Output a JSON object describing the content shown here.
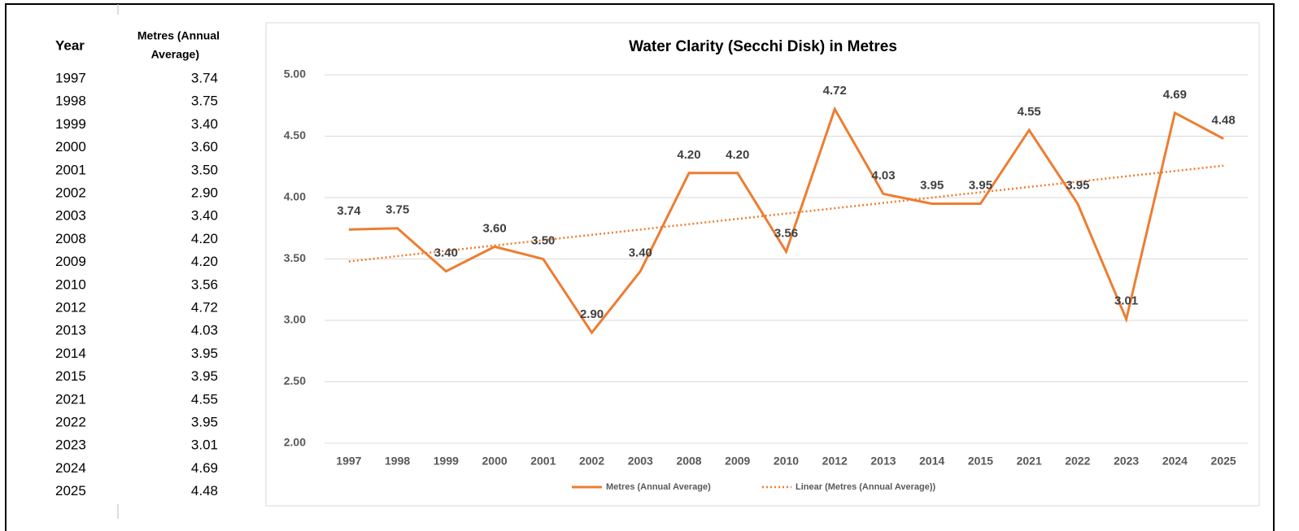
{
  "table": {
    "headers": [
      "Year",
      "Metres (Annual",
      "Average)"
    ],
    "rows": [
      [
        "1997",
        "3.74"
      ],
      [
        "1998",
        "3.75"
      ],
      [
        "1999",
        "3.40"
      ],
      [
        "2000",
        "3.60"
      ],
      [
        "2001",
        "3.50"
      ],
      [
        "2002",
        "2.90"
      ],
      [
        "2003",
        "3.40"
      ],
      [
        "2008",
        "4.20"
      ],
      [
        "2009",
        "4.20"
      ],
      [
        "2010",
        "3.56"
      ],
      [
        "2012",
        "4.72"
      ],
      [
        "2013",
        "4.03"
      ],
      [
        "2014",
        "3.95"
      ],
      [
        "2015",
        "3.95"
      ],
      [
        "2021",
        "4.55"
      ],
      [
        "2022",
        "3.95"
      ],
      [
        "2023",
        "3.01"
      ],
      [
        "2024",
        "4.69"
      ],
      [
        "2025",
        "4.48"
      ]
    ]
  },
  "chart_data": {
    "type": "line",
    "title": "Water Clarity (Secchi Disk) in Metres",
    "categories": [
      "1997",
      "1998",
      "1999",
      "2000",
      "2001",
      "2002",
      "2003",
      "2008",
      "2009",
      "2010",
      "2012",
      "2013",
      "2014",
      "2015",
      "2021",
      "2022",
      "2023",
      "2024",
      "2025"
    ],
    "series": [
      {
        "name": "Metres (Annual Average)",
        "color": "#ED7D31",
        "values": [
          3.74,
          3.75,
          3.4,
          3.6,
          3.5,
          2.9,
          3.4,
          4.2,
          4.2,
          3.56,
          4.72,
          4.03,
          3.95,
          3.95,
          4.55,
          3.95,
          3.01,
          4.69,
          4.48
        ],
        "value_labels": [
          "3.74",
          "3.75",
          "3.40",
          "3.60",
          "3.50",
          "2.90",
          "3.40",
          "4.20",
          "4.20",
          "3.56",
          "4.72",
          "4.03",
          "3.95",
          "3.95",
          "4.55",
          "3.95",
          "3.01",
          "4.69",
          "4.48"
        ]
      }
    ],
    "trendline": {
      "name": "Linear (Metres (Annual Average))",
      "color": "#ED7D31",
      "start": 3.48,
      "end": 4.26
    },
    "ylim": [
      2,
      5
    ],
    "yticks": [
      {
        "value": 2,
        "label": "2.00"
      },
      {
        "value": 2.5,
        "label": "2.50"
      },
      {
        "value": 3,
        "label": "3.00"
      },
      {
        "value": 3.5,
        "label": "3.50"
      },
      {
        "value": 4,
        "label": "4.00"
      },
      {
        "value": 4.5,
        "label": "4.50"
      },
      {
        "value": 5,
        "label": "5.00"
      }
    ],
    "grid": true,
    "legend": "bottom"
  }
}
